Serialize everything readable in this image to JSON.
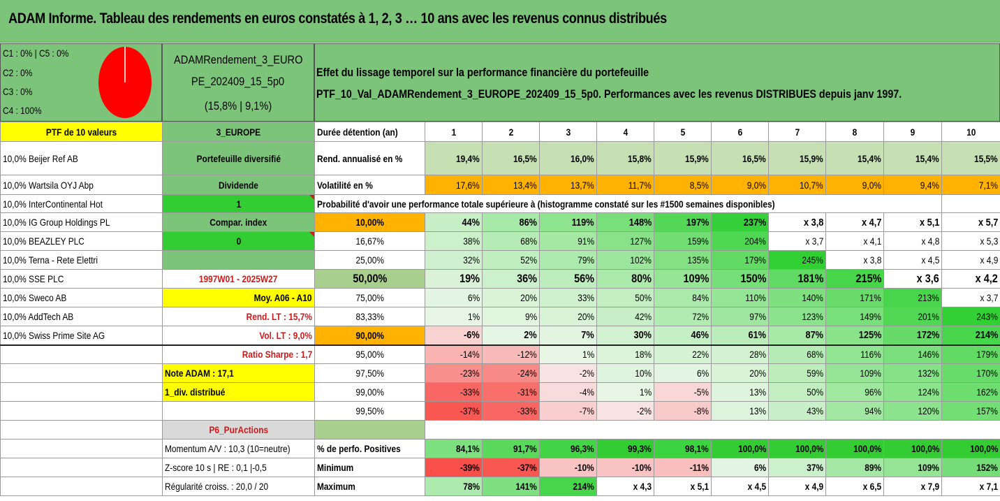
{
  "title": "ADAM Informe. Tableau des rendements en euros constatés à 1, 2, 3 … 10 ans avec les revenus connus distribués",
  "classes": [
    "C1 : 0% | C5 : 0%",
    "C2 : 0%",
    "C3 : 0%",
    "C4 : 100%"
  ],
  "pie_colors": {
    "fill": "#ff0000",
    "line": "#ffffff"
  },
  "fund": {
    "line1": "ADAMRendement_3_EURO",
    "line2": "PE_202409_15_5p0",
    "line3": "(15,8% | 9,1%)"
  },
  "description": {
    "line1": "Effet du lissage temporel sur la performance financière du portefeuille",
    "line2": "PTF_10_Val_ADAMRendement_3_EUROPE_202409_15_5p0. Performances avec les revenus DISTRIBUES depuis janv 1997."
  },
  "ptf_label": "PTF de 10 valeurs",
  "zone": "3_EUROPE",
  "duration_label": "Durée détention (an)",
  "years": [
    "1",
    "2",
    "3",
    "4",
    "5",
    "6",
    "7",
    "8",
    "9",
    "10"
  ],
  "holdings": [
    "10,0% Beijer Ref AB",
    "10,0% Wartsila OYJ Abp",
    "10,0% InterContinental Hot",
    "10,0% IG Group Holdings PL",
    "10,0% BEAZLEY PLC",
    "10,0% Terna - Rete Elettri",
    "10,0% SSE PLC",
    "10,0% Sweco AB",
    "10,0% AddTech AB",
    "10,0% Swiss Prime Site AG"
  ],
  "info": {
    "diversification": "Portefeuille diversifié",
    "dividend_label": "Dividende",
    "dividend_value": "1",
    "compar_label": "Compar. index",
    "compar_value": "0",
    "period": "1997W01 - 2025W27",
    "moy": "Moy. A06 - A10",
    "rend_lt": "Rend. LT : 15,7%",
    "vol_lt": "Vol. LT : 9,0%",
    "sharpe": "Ratio Sharpe : 1,7",
    "note": "Note ADAM : 17,1",
    "div": "1_div. distribué",
    "category": "P6_PurActions",
    "momentum": "Momentum A/V : 10,3 (10=neutre)",
    "zscore": "Z-score 10 s | RE : 0,1 |-0,5",
    "regularite": "Régularité croiss. : 20,0 / 20"
  },
  "rend_label": "Rend. annualisé en %",
  "rend_values": [
    "19,4%",
    "16,5%",
    "16,0%",
    "15,8%",
    "15,9%",
    "16,5%",
    "15,9%",
    "15,4%",
    "15,4%",
    "15,5%"
  ],
  "vol_label": "Volatilité en %",
  "vol_values": [
    "17,6%",
    "13,4%",
    "13,7%",
    "11,7%",
    "8,5%",
    "9,0%",
    "10,7%",
    "9,0%",
    "9,4%",
    "7,1%"
  ],
  "proba_title": "Probabilité d'avoir une performance totale supérieure à (histogramme constaté sur les #1500 semaines disponibles)",
  "quantiles": [
    {
      "p": "10,00%",
      "values": [
        "44%",
        "86%",
        "119%",
        "148%",
        "197%",
        "237%",
        "x 3,8",
        "x 4,7",
        "x 5,1",
        "x 5,7"
      ]
    },
    {
      "p": "16,67%",
      "values": [
        "38%",
        "68%",
        "91%",
        "127%",
        "159%",
        "204%",
        "x 3,7",
        "x 4,1",
        "x 4,8",
        "x 5,3"
      ]
    },
    {
      "p": "25,00%",
      "values": [
        "32%",
        "52%",
        "79%",
        "102%",
        "135%",
        "179%",
        "245%",
        "x 3,8",
        "x 4,5",
        "x 4,9"
      ]
    },
    {
      "p": "50,00%",
      "values": [
        "19%",
        "36%",
        "56%",
        "80%",
        "109%",
        "150%",
        "181%",
        "215%",
        "x 3,6",
        "x 4,2"
      ]
    },
    {
      "p": "75,00%",
      "values": [
        "6%",
        "20%",
        "33%",
        "50%",
        "84%",
        "110%",
        "140%",
        "171%",
        "213%",
        "x 3,7"
      ]
    },
    {
      "p": "83,33%",
      "values": [
        "1%",
        "9%",
        "20%",
        "42%",
        "72%",
        "97%",
        "123%",
        "149%",
        "201%",
        "243%"
      ]
    },
    {
      "p": "90,00%",
      "values": [
        "-6%",
        "2%",
        "7%",
        "30%",
        "46%",
        "61%",
        "87%",
        "125%",
        "172%",
        "214%"
      ]
    },
    {
      "p": "95,00%",
      "values": [
        "-14%",
        "-12%",
        "1%",
        "18%",
        "22%",
        "28%",
        "68%",
        "116%",
        "146%",
        "179%"
      ]
    },
    {
      "p": "97,50%",
      "values": [
        "-23%",
        "-24%",
        "-2%",
        "10%",
        "6%",
        "20%",
        "59%",
        "109%",
        "132%",
        "170%"
      ]
    },
    {
      "p": "99,00%",
      "values": [
        "-33%",
        "-31%",
        "-4%",
        "1%",
        "-5%",
        "13%",
        "50%",
        "96%",
        "124%",
        "162%"
      ]
    },
    {
      "p": "99,50%",
      "values": [
        "-37%",
        "-33%",
        "-7%",
        "-2%",
        "-8%",
        "13%",
        "43%",
        "94%",
        "120%",
        "157%"
      ]
    }
  ],
  "positive_label": "% de perfo. Positives",
  "positive_values": [
    "84,1%",
    "91,7%",
    "96,3%",
    "99,3%",
    "98,1%",
    "100,0%",
    "100,0%",
    "100,0%",
    "100,0%",
    "100,0%"
  ],
  "min_label": "Minimum",
  "min_values": [
    "-39%",
    "-37%",
    "-10%",
    "-10%",
    "-11%",
    "6%",
    "37%",
    "89%",
    "109%",
    "152%"
  ],
  "max_label": "Maximum",
  "max_values": [
    "78%",
    "141%",
    "214%",
    "x 4,3",
    "x 5,1",
    "x 4,5",
    "x 4,9",
    "x 6,5",
    "x 7,9",
    "x 7,1"
  ]
}
